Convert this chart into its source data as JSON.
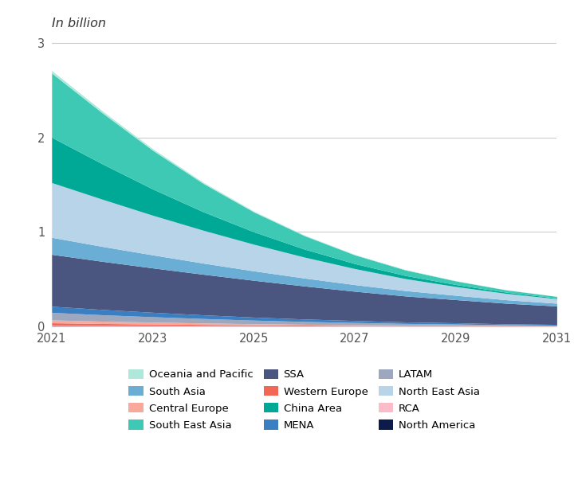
{
  "years": [
    2021,
    2022,
    2023,
    2024,
    2025,
    2026,
    2027,
    2028,
    2029,
    2030,
    2031
  ],
  "stack_order": [
    "North America",
    "RCA",
    "Western Europe",
    "Central Europe",
    "LATAM",
    "MENA",
    "SSA",
    "South Asia",
    "North East Asia",
    "China Area",
    "South East Asia",
    "Oceania and Pacific"
  ],
  "colors": {
    "North America": "#0d1b4b",
    "RCA": "#f9bcc8",
    "Western Europe": "#f26755",
    "Central Europe": "#f8a99b",
    "LATAM": "#9da8be",
    "MENA": "#3a7fc1",
    "SSA": "#4a5580",
    "South Asia": "#6aadd5",
    "North East Asia": "#b8d4e8",
    "China Area": "#00a896",
    "South East Asia": "#3ec9b5",
    "Oceania and Pacific": "#aee8db"
  },
  "data": {
    "North America": [
      0.003,
      0.002,
      0.002,
      0.001,
      0.001,
      0.001,
      0.001,
      0.001,
      0.001,
      0.0,
      0.0
    ],
    "RCA": [
      0.01,
      0.008,
      0.007,
      0.006,
      0.005,
      0.004,
      0.003,
      0.002,
      0.002,
      0.001,
      0.001
    ],
    "Western Europe": [
      0.025,
      0.02,
      0.016,
      0.013,
      0.01,
      0.008,
      0.006,
      0.005,
      0.004,
      0.003,
      0.002
    ],
    "Central Europe": [
      0.03,
      0.025,
      0.02,
      0.016,
      0.012,
      0.009,
      0.007,
      0.005,
      0.004,
      0.003,
      0.002
    ],
    "LATAM": [
      0.08,
      0.068,
      0.057,
      0.047,
      0.038,
      0.03,
      0.024,
      0.018,
      0.014,
      0.01,
      0.008
    ],
    "MENA": [
      0.065,
      0.056,
      0.047,
      0.039,
      0.032,
      0.026,
      0.021,
      0.016,
      0.013,
      0.01,
      0.008
    ],
    "SSA": [
      0.55,
      0.51,
      0.47,
      0.43,
      0.39,
      0.35,
      0.31,
      0.275,
      0.245,
      0.218,
      0.195
    ],
    "South Asia": [
      0.18,
      0.158,
      0.138,
      0.118,
      0.1,
      0.084,
      0.07,
      0.057,
      0.046,
      0.037,
      0.029
    ],
    "North East Asia": [
      0.58,
      0.5,
      0.42,
      0.348,
      0.282,
      0.222,
      0.17,
      0.127,
      0.093,
      0.067,
      0.048
    ],
    "China Area": [
      0.48,
      0.375,
      0.278,
      0.196,
      0.132,
      0.085,
      0.053,
      0.033,
      0.021,
      0.013,
      0.008
    ],
    "South East Asia": [
      0.68,
      0.54,
      0.41,
      0.3,
      0.21,
      0.142,
      0.092,
      0.059,
      0.038,
      0.024,
      0.016
    ],
    "Oceania and Pacific": [
      0.027,
      0.021,
      0.016,
      0.012,
      0.009,
      0.007,
      0.005,
      0.004,
      0.003,
      0.002,
      0.001
    ]
  },
  "ylabel": "In billion",
  "ylim": [
    0,
    3.05
  ],
  "yticks": [
    0,
    1,
    2,
    3
  ],
  "xticks": [
    2021,
    2023,
    2025,
    2027,
    2029,
    2031
  ],
  "background_color": "#ffffff",
  "legend_order": [
    "Oceania and Pacific",
    "South Asia",
    "Central Europe",
    "South East Asia",
    "SSA",
    "Western Europe",
    "China Area",
    "MENA",
    "LATAM",
    "North East Asia",
    "RCA",
    "North America"
  ]
}
